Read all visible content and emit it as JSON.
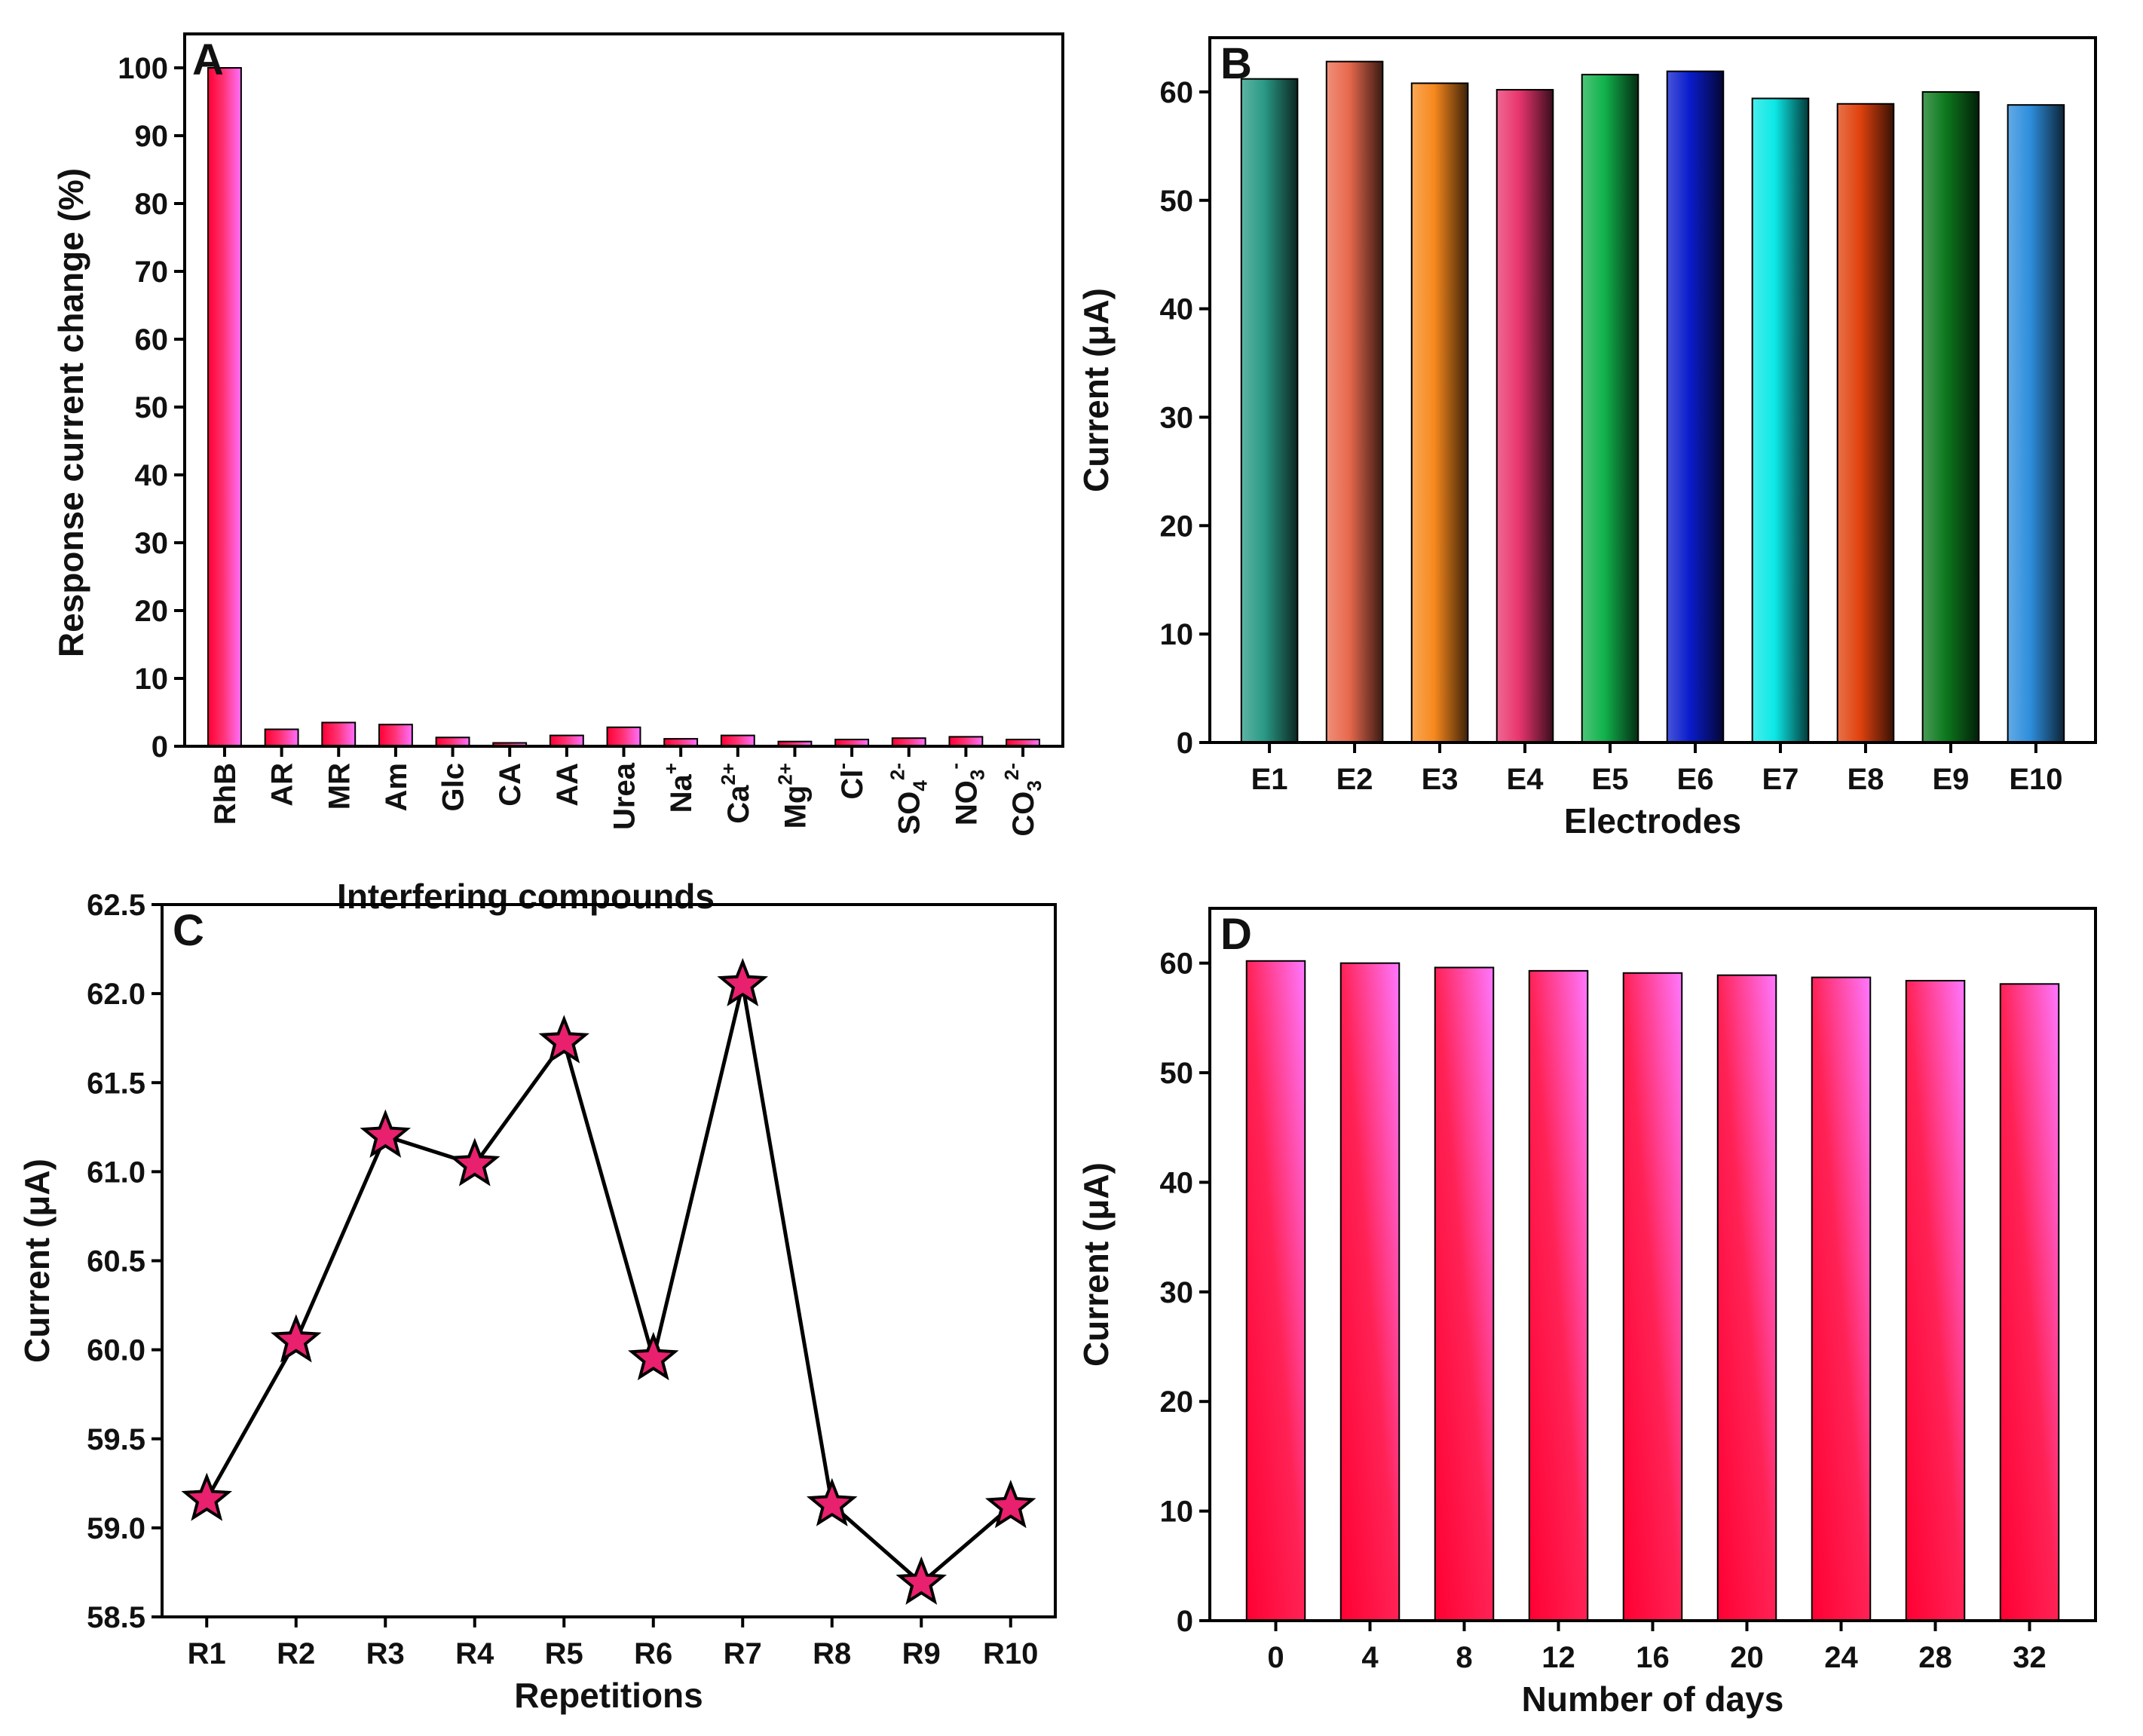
{
  "chart_data": [
    {
      "panel": "A",
      "type": "bar",
      "xlabel": "Interfering compounds",
      "ylabel": "Response current change (%)",
      "ylim": [
        0,
        105
      ],
      "yticks": [
        0,
        10,
        20,
        30,
        40,
        50,
        60,
        70,
        80,
        90,
        100
      ],
      "categories": [
        {
          "label": "RhB"
        },
        {
          "label": "AR"
        },
        {
          "label": "MR"
        },
        {
          "label": "Am"
        },
        {
          "label": "Glc"
        },
        {
          "label": "CA"
        },
        {
          "label": "AA"
        },
        {
          "label": "Urea"
        },
        {
          "label": "Na",
          "sup": "+"
        },
        {
          "label": "Ca",
          "sup": "2+"
        },
        {
          "label": "Mg",
          "sup": "2+"
        },
        {
          "label": "Cl",
          "sup": "-"
        },
        {
          "label": "SO",
          "sub": "4",
          "sup": "2-"
        },
        {
          "label": "NO",
          "sub": "3",
          "sup": "-"
        },
        {
          "label": "CO",
          "sub": "3",
          "sup": "2-"
        }
      ],
      "values": [
        100,
        2.5,
        3.5,
        3.2,
        1.3,
        0.5,
        1.6,
        2.8,
        1.1,
        1.6,
        0.7,
        1.0,
        1.2,
        1.4,
        1.0
      ],
      "colors": {
        "light": "#ff66ff",
        "dark": "#ff0033"
      },
      "grid": false
    },
    {
      "panel": "B",
      "type": "bar",
      "xlabel": "Electrodes",
      "ylabel": "Current (μA)",
      "ylim": [
        0,
        65
      ],
      "yticks": [
        0,
        10,
        20,
        30,
        40,
        50,
        60
      ],
      "categories": [
        "E1",
        "E2",
        "E3",
        "E4",
        "E5",
        "E6",
        "E7",
        "E8",
        "E9",
        "E10"
      ],
      "values": [
        61.2,
        62.8,
        60.8,
        60.2,
        61.6,
        61.9,
        59.4,
        58.9,
        60.0,
        58.8
      ],
      "colors": [
        "#2a9a86",
        "#e8694d",
        "#f7891e",
        "#e8356e",
        "#11b24c",
        "#0a1ccc",
        "#0ce8e6",
        "#e0420e",
        "#0d7a1e",
        "#2e8edc"
      ],
      "grid": false
    },
    {
      "panel": "C",
      "type": "line",
      "xlabel": "Repetitions",
      "ylabel": "Current (μA)",
      "ylim": [
        58.5,
        62.5
      ],
      "yticks": [
        "58.5",
        "59.0",
        "59.5",
        "60.0",
        "60.5",
        "61.0",
        "61.5",
        "62.0",
        "62.5"
      ],
      "categories": [
        "R1",
        "R2",
        "R3",
        "R4",
        "R5",
        "R6",
        "R7",
        "R8",
        "R9",
        "R10"
      ],
      "values": [
        59.16,
        60.05,
        61.2,
        61.04,
        61.73,
        59.95,
        62.05,
        59.13,
        58.69,
        59.12
      ],
      "marker": "star",
      "colors": {
        "marker": "#e8206e",
        "line": "#000000"
      },
      "grid": false
    },
    {
      "panel": "D",
      "type": "bar",
      "xlabel": "Number of days",
      "ylabel": "Current (μA)",
      "ylim": [
        0,
        65
      ],
      "yticks": [
        0,
        10,
        20,
        30,
        40,
        50,
        60
      ],
      "categories": [
        "0",
        "4",
        "8",
        "12",
        "16",
        "20",
        "24",
        "28",
        "32"
      ],
      "values": [
        60.2,
        60.0,
        59.6,
        59.3,
        59.1,
        58.9,
        58.7,
        58.4,
        58.1
      ],
      "colors": {
        "light": "#ff66ff",
        "dark": "#ff0033"
      },
      "grid": false
    }
  ]
}
